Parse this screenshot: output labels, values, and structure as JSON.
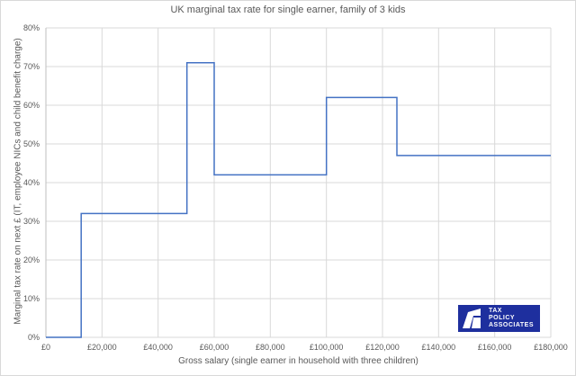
{
  "chart_data": {
    "type": "line",
    "subtype": "step",
    "title": "UK marginal tax rate for single earner, family of 3 kids",
    "xlabel": "Gross salary (single earner in household with three children)",
    "ylabel": "Marginal tax rate on next £ (IT, employee NICs and child benefit charge)",
    "xlim": [
      0,
      180000
    ],
    "ylim": [
      0,
      0.8
    ],
    "x_ticks": [
      "£0",
      "£20,000",
      "£40,000",
      "£60,000",
      "£80,000",
      "£100,000",
      "£120,000",
      "£140,000",
      "£160,000",
      "£180,000"
    ],
    "y_ticks": [
      "0%",
      "10%",
      "20%",
      "30%",
      "40%",
      "50%",
      "60%",
      "70%",
      "80%"
    ],
    "grid": true,
    "legend": null,
    "series": [
      {
        "name": "Marginal tax rate",
        "color": "#4472c4",
        "points": [
          [
            0,
            0
          ],
          [
            12570,
            0
          ],
          [
            12570,
            0.32
          ],
          [
            50270,
            0.32
          ],
          [
            50270,
            0.71
          ],
          [
            60000,
            0.71
          ],
          [
            60000,
            0.42
          ],
          [
            100000,
            0.42
          ],
          [
            100000,
            0.62
          ],
          [
            125140,
            0.62
          ],
          [
            125140,
            0.47
          ],
          [
            180000,
            0.47
          ]
        ]
      }
    ]
  },
  "logo": {
    "lines": [
      "TAX",
      "POLICY",
      "ASSOCIATES"
    ],
    "background": "#1e2f9e"
  }
}
